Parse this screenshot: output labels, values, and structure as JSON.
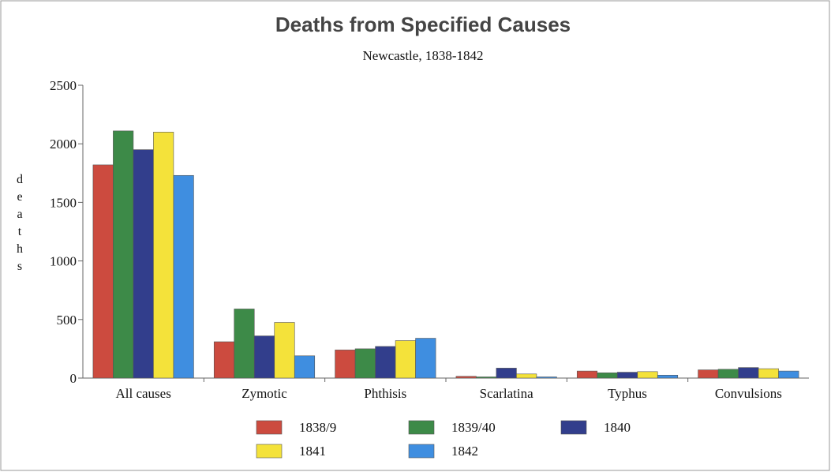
{
  "chart_data": {
    "type": "bar",
    "title": "Deaths from Specified Causes",
    "subtitle": "Newcastle, 1838-1842",
    "ylabel": "deaths",
    "xlabel": "",
    "ylim": [
      0,
      2500
    ],
    "yticks": [
      0,
      500,
      1000,
      1500,
      2000,
      2500
    ],
    "grid": false,
    "legend_position": "bottom",
    "categories": [
      "All causes",
      "Zymotic",
      "Phthisis",
      "Scarlatina",
      "Typhus",
      "Convulsions"
    ],
    "series": [
      {
        "name": "1838/9",
        "color": "#cc4b3f",
        "values": [
          1820,
          310,
          240,
          15,
          60,
          70
        ]
      },
      {
        "name": "1839/40",
        "color": "#3d8a48",
        "values": [
          2110,
          590,
          250,
          10,
          45,
          75
        ]
      },
      {
        "name": "1840",
        "color": "#323e8c",
        "values": [
          1950,
          360,
          270,
          85,
          50,
          90
        ]
      },
      {
        "name": "1841",
        "color": "#f4e23a",
        "values": [
          2100,
          475,
          320,
          35,
          55,
          80
        ]
      },
      {
        "name": "1842",
        "color": "#3f8ee0",
        "values": [
          1730,
          190,
          340,
          10,
          25,
          60
        ]
      }
    ]
  }
}
